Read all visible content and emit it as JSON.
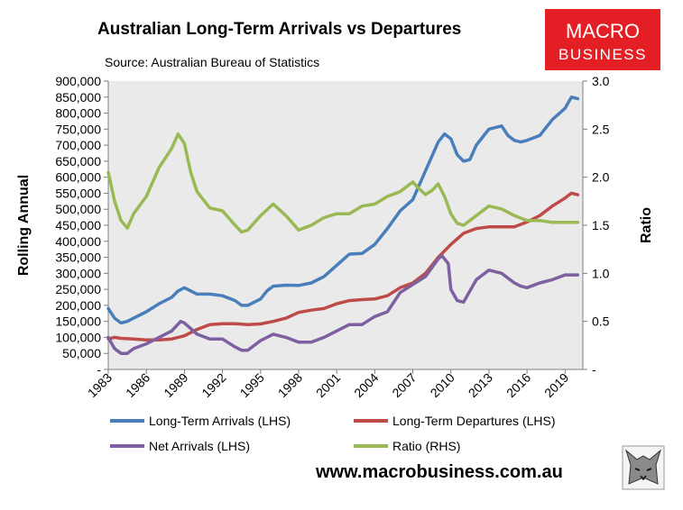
{
  "chart_data": {
    "type": "line",
    "title": "Australian Long-Term Arrivals vs Departures",
    "subtitle": "Source: Australian Bureau of Statistics",
    "ylabel": "Rolling Annual",
    "y2label": "Ratio",
    "xlim": [
      1983,
      2020.4
    ],
    "ylim": [
      0,
      900000
    ],
    "y2lim": [
      0,
      3.0
    ],
    "x_ticks": [
      "1983",
      "1986",
      "1989",
      "1992",
      "1995",
      "1998",
      "2001",
      "2004",
      "2007",
      "2010",
      "2013",
      "2016",
      "2019"
    ],
    "y_ticks": [
      "-",
      "50,000",
      "100,000",
      "150,000",
      "200,000",
      "250,000",
      "300,000",
      "350,000",
      "400,000",
      "450,000",
      "500,000",
      "550,000",
      "600,000",
      "650,000",
      "700,000",
      "750,000",
      "800,000",
      "850,000",
      "900,000"
    ],
    "y2_ticks": [
      "-",
      "0.5",
      "1.0",
      "1.5",
      "2.0",
      "2.5",
      "3.0"
    ],
    "grid": false,
    "legend_position": "bottom",
    "colors": {
      "arrivals": "#4a7ebb",
      "departures": "#be4b48",
      "net": "#7d60a0",
      "ratio": "#98b954",
      "plot_bg": "#eaeaea",
      "logo_bg": "#e31e24"
    },
    "series": [
      {
        "name": "Long-Term Arrivals (LHS)",
        "axis": "left",
        "color": "#4a7ebb",
        "x": [
          1983,
          1983.5,
          1984,
          1984.5,
          1985,
          1986,
          1987,
          1988,
          1988.5,
          1989,
          1990,
          1991,
          1992,
          1993,
          1993.5,
          1994,
          1995,
          1995.5,
          1996,
          1997,
          1998,
          1999,
          2000,
          2001,
          2002,
          2003,
          2004,
          2005,
          2006,
          2007,
          2008,
          2009,
          2009.5,
          2010,
          2010.5,
          2011,
          2011.5,
          2012,
          2013,
          2014,
          2014.5,
          2015,
          2015.5,
          2016,
          2017,
          2018,
          2019,
          2019.5,
          2020
        ],
        "y": [
          190000,
          160000,
          145000,
          150000,
          160000,
          180000,
          205000,
          225000,
          245000,
          255000,
          235000,
          235000,
          230000,
          215000,
          200000,
          200000,
          220000,
          245000,
          260000,
          263000,
          262000,
          270000,
          290000,
          325000,
          360000,
          362000,
          390000,
          440000,
          495000,
          530000,
          620000,
          710000,
          735000,
          720000,
          670000,
          650000,
          655000,
          700000,
          750000,
          760000,
          730000,
          715000,
          710000,
          715000,
          730000,
          780000,
          815000,
          850000,
          845000
        ]
      },
      {
        "name": "Long-Term Departures (LHS)",
        "axis": "left",
        "color": "#be4b48",
        "x": [
          1983,
          1983.5,
          1984,
          1985,
          1986,
          1987,
          1988,
          1989,
          1990,
          1991,
          1992,
          1993,
          1994,
          1995,
          1996,
          1997,
          1998,
          1999,
          2000,
          2001,
          2002,
          2003,
          2004,
          2005,
          2006,
          2007,
          2008,
          2009,
          2010,
          2011,
          2012,
          2013,
          2014,
          2015,
          2016,
          2017,
          2018,
          2019,
          2019.5,
          2020
        ],
        "y": [
          95000,
          100000,
          97000,
          95000,
          92000,
          92000,
          95000,
          105000,
          125000,
          140000,
          143000,
          143000,
          140000,
          142000,
          150000,
          160000,
          178000,
          185000,
          190000,
          205000,
          215000,
          218000,
          220000,
          230000,
          255000,
          270000,
          300000,
          350000,
          390000,
          425000,
          440000,
          445000,
          445000,
          445000,
          460000,
          480000,
          510000,
          535000,
          550000,
          545000
        ]
      },
      {
        "name": "Net Arrivals (LHS)",
        "axis": "left",
        "color": "#7d60a0",
        "x": [
          1983,
          1983.5,
          1984,
          1984.5,
          1985,
          1986,
          1987,
          1988,
          1988.7,
          1989,
          1990,
          1991,
          1992,
          1993,
          1993.5,
          1994,
          1995,
          1996,
          1997,
          1998,
          1999,
          2000,
          2001,
          2002,
          2003,
          2004,
          2005,
          2006,
          2007,
          2008,
          2009,
          2009.3,
          2009.8,
          2010,
          2010.5,
          2011,
          2012,
          2013,
          2014,
          2015,
          2015.5,
          2016,
          2017,
          2018,
          2019,
          2020
        ],
        "y": [
          100000,
          65000,
          50000,
          50000,
          65000,
          80000,
          100000,
          120000,
          150000,
          145000,
          110000,
          95000,
          95000,
          70000,
          60000,
          60000,
          90000,
          110000,
          100000,
          85000,
          85000,
          100000,
          120000,
          140000,
          140000,
          165000,
          180000,
          240000,
          265000,
          290000,
          345000,
          355000,
          330000,
          250000,
          215000,
          210000,
          280000,
          310000,
          300000,
          270000,
          260000,
          255000,
          270000,
          280000,
          295000,
          295000
        ]
      },
      {
        "name": "Ratio (RHS)",
        "axis": "right",
        "color": "#98b954",
        "x": [
          1983,
          1983.5,
          1984,
          1984.5,
          1985,
          1986,
          1987,
          1988,
          1988.5,
          1989,
          1989.5,
          1990,
          1991,
          1992,
          1993,
          1993.5,
          1994,
          1995,
          1996,
          1997,
          1998,
          1999,
          2000,
          2001,
          2002,
          2003,
          2004,
          2005,
          2006,
          2007,
          2007.5,
          2008,
          2008.5,
          2009,
          2009.5,
          2010,
          2010.5,
          2011,
          2012,
          2013,
          2014,
          2015,
          2016,
          2017,
          2018,
          2019,
          2020
        ],
        "y": [
          2.05,
          1.75,
          1.55,
          1.47,
          1.62,
          1.8,
          2.1,
          2.3,
          2.45,
          2.35,
          2.05,
          1.85,
          1.68,
          1.65,
          1.5,
          1.43,
          1.45,
          1.6,
          1.72,
          1.6,
          1.45,
          1.5,
          1.58,
          1.62,
          1.62,
          1.7,
          1.72,
          1.8,
          1.85,
          1.95,
          1.88,
          1.82,
          1.86,
          1.93,
          1.8,
          1.62,
          1.52,
          1.5,
          1.6,
          1.7,
          1.67,
          1.6,
          1.55,
          1.55,
          1.53,
          1.53,
          1.53
        ]
      }
    ]
  },
  "legend": {
    "items": [
      {
        "label": "Long-Term Arrivals (LHS)",
        "color": "#4a7ebb"
      },
      {
        "label": "Long-Term Departures (LHS)",
        "color": "#be4b48"
      },
      {
        "label": "Net Arrivals (LHS)",
        "color": "#7d60a0"
      },
      {
        "label": "Ratio (RHS)",
        "color": "#98b954"
      }
    ]
  },
  "logo": {
    "line1": "MACRO",
    "line2": "BUSINESS",
    "icon": "wolf-icon"
  },
  "website": "www.macrobusiness.com.au"
}
